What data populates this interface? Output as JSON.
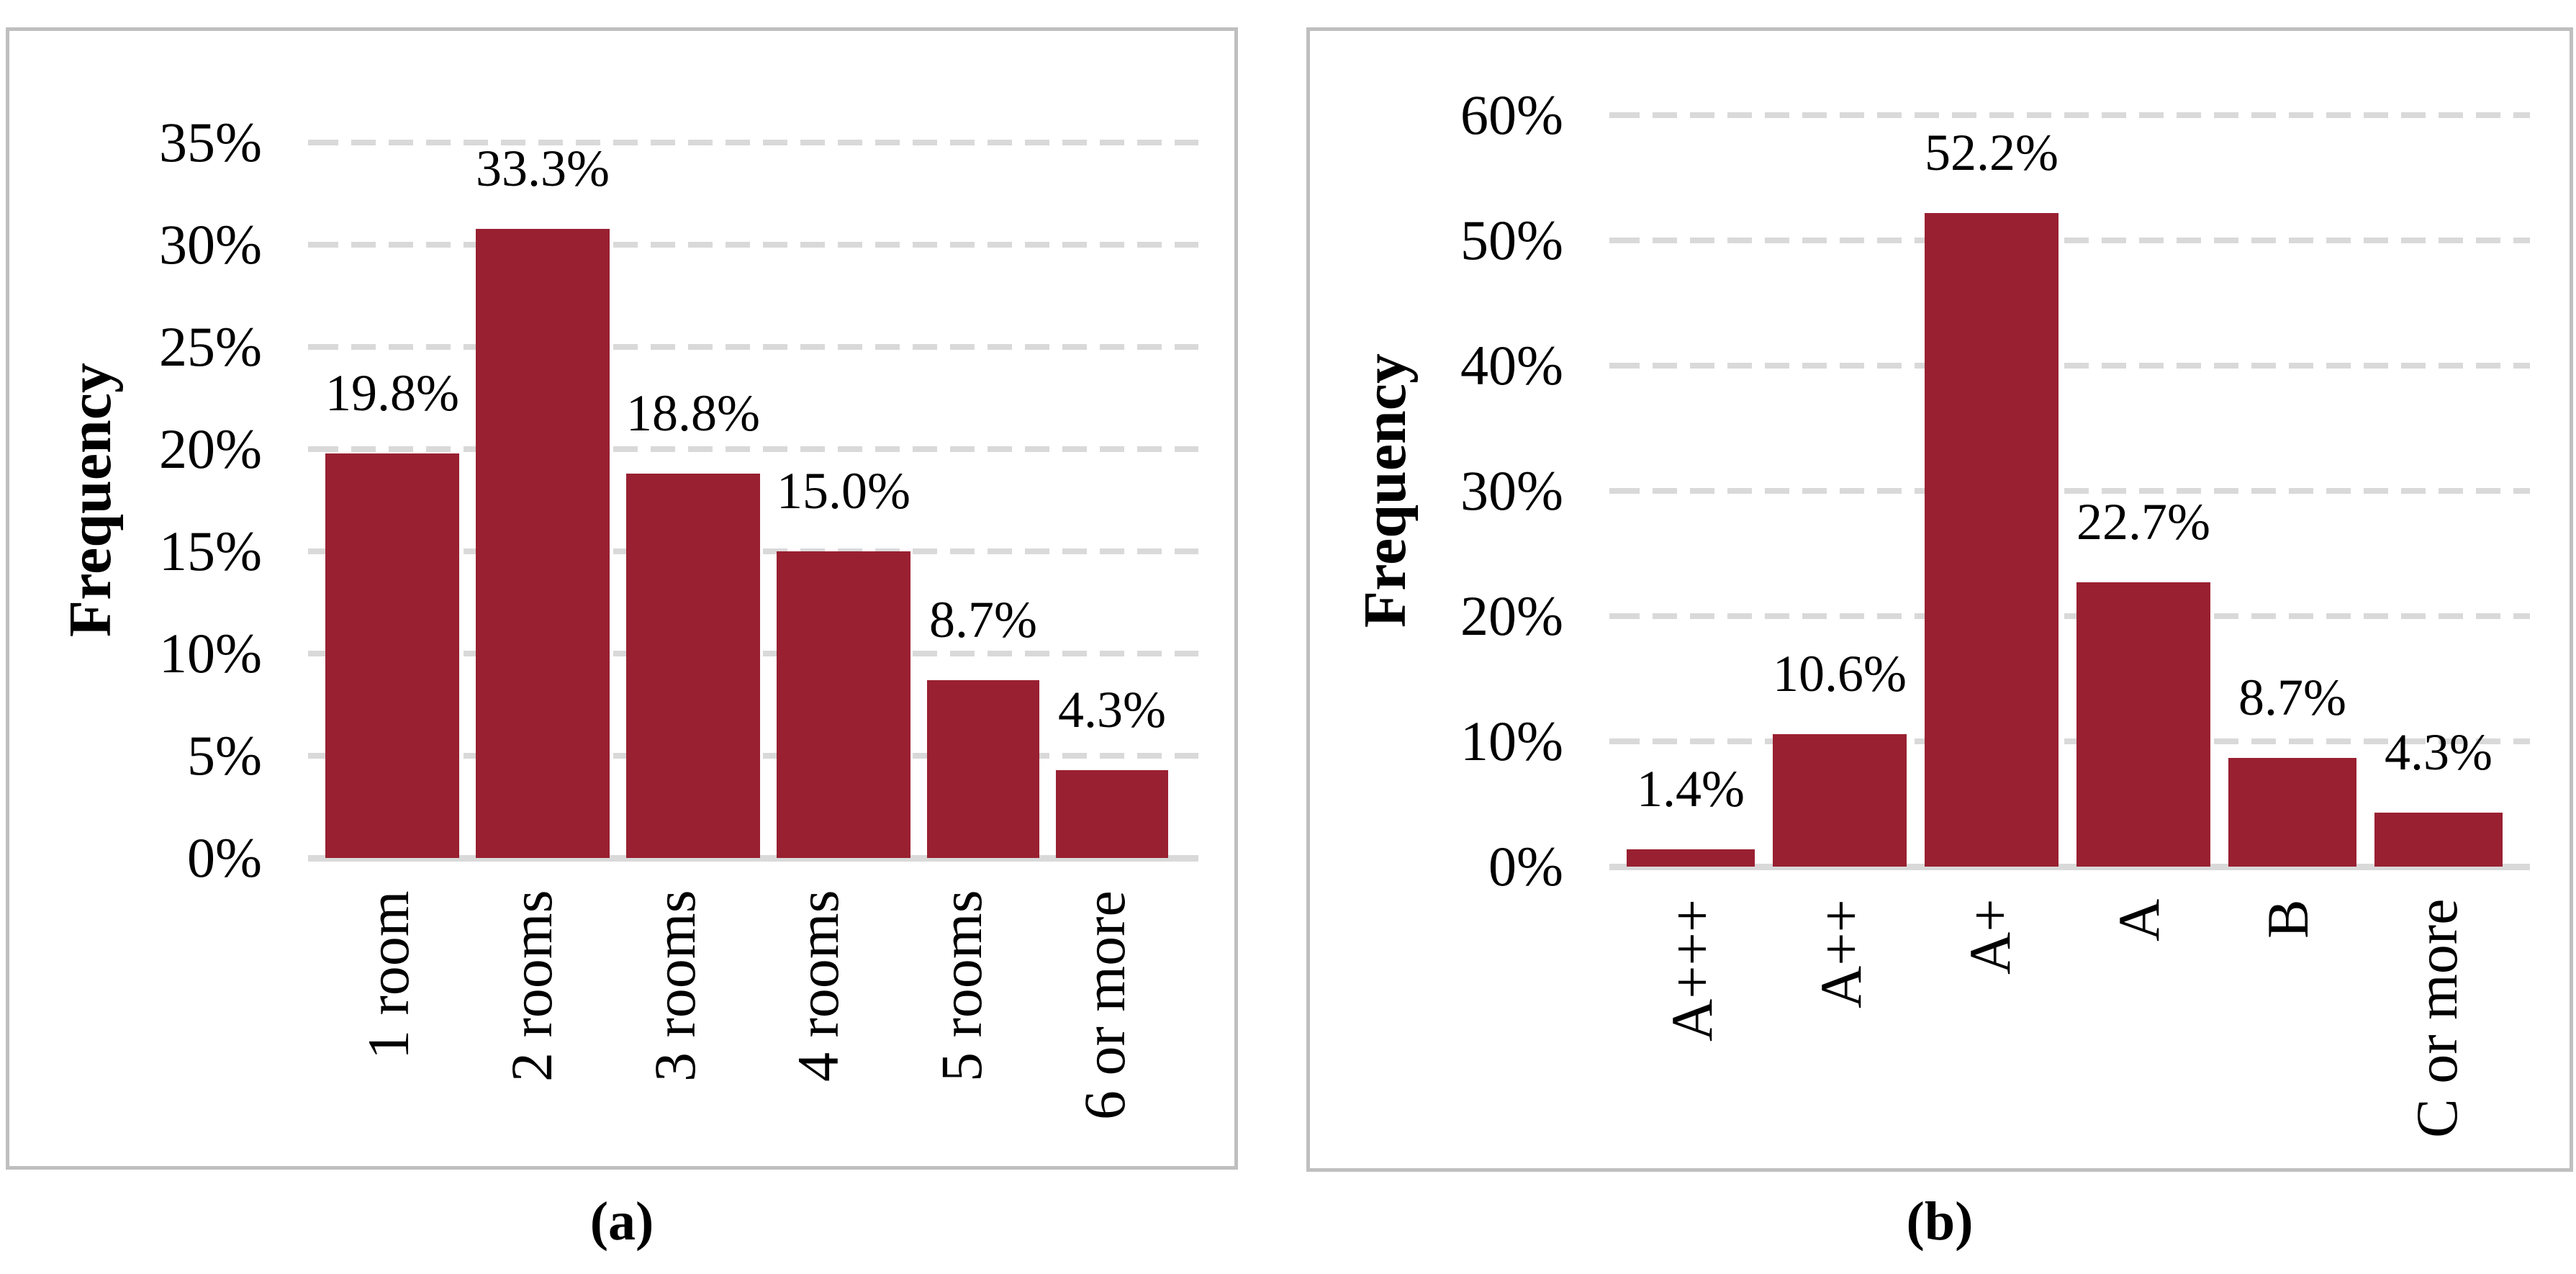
{
  "colors": {
    "bar": "#992031",
    "grid": "#D9D9D9",
    "panel_border": "#BFBFBF",
    "text": "#000000"
  },
  "chart_data": [
    {
      "type": "bar",
      "panel_label": "(a)",
      "ylabel": "Frequency",
      "categories": [
        "1 room",
        "2 rooms",
        "3 rooms",
        "4 rooms",
        "5 rooms",
        "6 or more"
      ],
      "values": [
        19.8,
        33.3,
        18.8,
        15.0,
        8.7,
        4.3
      ],
      "value_labels": [
        "19.8%",
        "33.3%",
        "18.8%",
        "15.0%",
        "8.7%",
        "4.3%"
      ],
      "ylim": [
        0,
        35
      ],
      "ytick_step": 5,
      "ytick_labels": [
        "0%",
        "5%",
        "10%",
        "15%",
        "20%",
        "25%",
        "30%",
        "35%"
      ],
      "grid": "horizontal-dashed",
      "legend": "none",
      "x_label_rotation_deg": 90
    },
    {
      "type": "bar",
      "panel_label": "(b)",
      "ylabel": "Frequency",
      "categories": [
        "A+++",
        "A++",
        "A+",
        "A",
        "B",
        "C or more"
      ],
      "values": [
        1.4,
        10.6,
        52.2,
        22.7,
        8.7,
        4.3
      ],
      "value_labels": [
        "1.4%",
        "10.6%",
        "52.2%",
        "22.7%",
        "8.7%",
        "4.3%"
      ],
      "ylim": [
        0,
        60
      ],
      "ytick_step": 10,
      "ytick_labels": [
        "0%",
        "10%",
        "20%",
        "30%",
        "40%",
        "50%",
        "60%"
      ],
      "grid": "horizontal-dashed",
      "legend": "none",
      "x_label_rotation_deg": 90
    }
  ]
}
